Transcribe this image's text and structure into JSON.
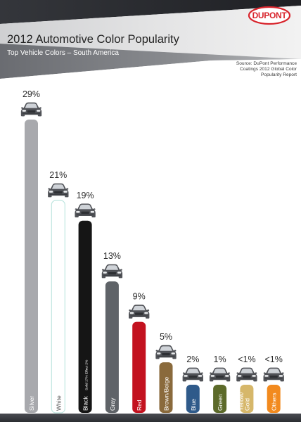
{
  "header": {
    "title": "2012 Automotive Color Popularity",
    "subtitle": "Top Vehicle Colors – South America",
    "source_lines": [
      "Source: DuPont Performance",
      "Coatings 2012 Global Color",
      "Popularity Report"
    ],
    "logo_text": "DUPONT"
  },
  "chart_data": {
    "type": "bar",
    "title": "2012 Automotive Color Popularity",
    "subtitle": "Top Vehicle Colors – South America",
    "ylim": [
      0,
      30
    ],
    "categories": [
      "Silver",
      "White",
      "Black",
      "Gray",
      "Red",
      "Brown/Beige",
      "Blue",
      "Green",
      "Yellow/Gold",
      "Others"
    ],
    "category_labels": [
      [
        "Silver"
      ],
      [
        "White"
      ],
      [
        "Black"
      ],
      [
        "Gray"
      ],
      [
        "Red"
      ],
      [
        "Brown/Beige"
      ],
      [
        "Blue"
      ],
      [
        "Green"
      ],
      [
        "Yellow/",
        "Gold"
      ],
      [
        "Others"
      ]
    ],
    "values": [
      29,
      21,
      19,
      13,
      9,
      5,
      2,
      1,
      0.5,
      0.5
    ],
    "value_labels": [
      "29%",
      "21%",
      "19%",
      "13%",
      "9%",
      "5%",
      "2%",
      "1%",
      "<1%",
      "<1%"
    ],
    "colors": [
      "#a8a9ad",
      "#ffffff",
      "#151515",
      "#5f6368",
      "#c3121f",
      "#8a6a3c",
      "#2f5a8a",
      "#5c6a2a",
      "#d6b76a",
      "#f28a1e"
    ],
    "annotations": [
      {
        "category": "Black",
        "lines": [
          "Solid 17%",
          "Effect 2%"
        ]
      }
    ]
  }
}
